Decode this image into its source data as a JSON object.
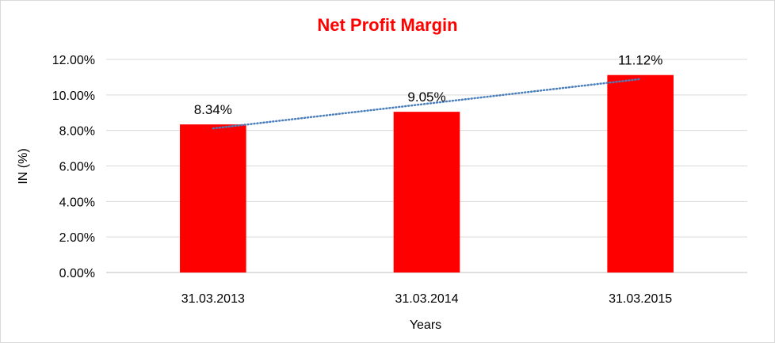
{
  "chart_data": {
    "type": "bar",
    "title": "Net Profit Margin",
    "xlabel": "Years",
    "ylabel": "IN (%)",
    "categories": [
      "31.03.2013",
      "31.03.2014",
      "31.03.2015"
    ],
    "values": [
      8.34,
      9.05,
      11.12
    ],
    "data_labels": [
      "8.34%",
      "9.05%",
      "11.12%"
    ],
    "yticks": [
      "0.00%",
      "2.00%",
      "4.00%",
      "6.00%",
      "8.00%",
      "10.00%",
      "12.00%"
    ],
    "ylim": [
      0,
      12
    ],
    "ytick_step": 2,
    "grid": true,
    "legend": "none",
    "trendline": {
      "type": "linear",
      "style": "dotted"
    }
  },
  "colors": {
    "bar": "#ff0000",
    "title": "#ff0000",
    "trendline": "#4a7ebb",
    "grid": "#d9d9d9",
    "axis": "#bfbfbf"
  }
}
